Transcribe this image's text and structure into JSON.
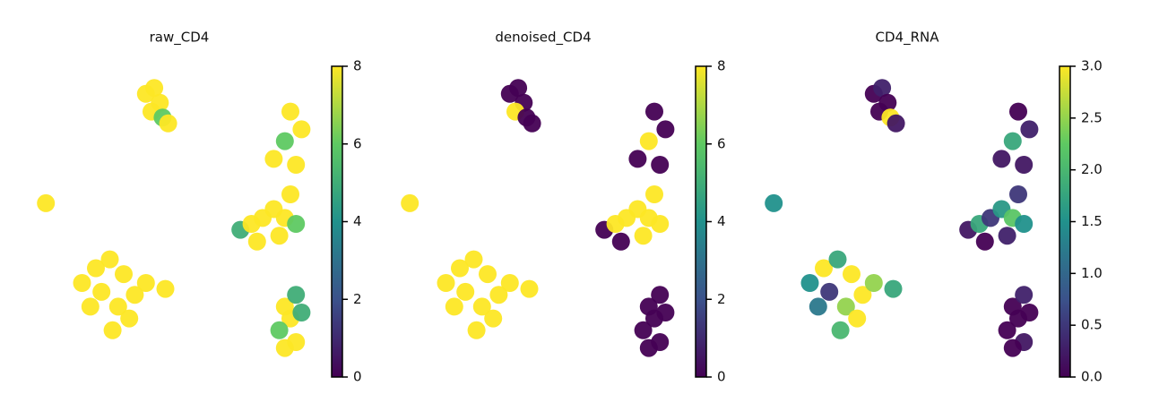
{
  "chart_data": [
    {
      "type": "scatter",
      "title": "raw_CD4",
      "colormap": "viridis",
      "xlim": [
        0,
        100
      ],
      "ylim": [
        0,
        100
      ],
      "x": [
        38,
        41,
        43,
        40,
        44,
        46,
        2,
        15,
        20,
        25,
        30,
        22,
        28,
        34,
        18,
        26,
        32,
        38,
        45,
        72,
        76,
        80,
        84,
        88,
        92,
        78,
        86,
        90,
        92,
        88,
        94,
        90,
        84,
        88,
        92,
        90,
        86,
        92,
        88,
        94
      ],
      "y": [
        94,
        96,
        91,
        88,
        86,
        84,
        57,
        30,
        35,
        38,
        33,
        27,
        22,
        26,
        22,
        14,
        18,
        30,
        28,
        48,
        50,
        52,
        55,
        52,
        50,
        44,
        46,
        60,
        70,
        78,
        82,
        88,
        72,
        22,
        26,
        18,
        14,
        10,
        8,
        20
      ],
      "values": [
        8,
        8,
        8,
        8,
        6,
        8,
        8,
        8,
        8,
        8,
        8,
        8,
        8,
        8,
        8,
        8,
        8,
        8,
        8,
        5,
        8,
        8,
        8,
        8,
        6,
        8,
        8,
        8,
        8,
        6,
        8,
        8,
        8,
        8,
        5,
        8,
        6,
        8,
        8,
        5
      ],
      "clim": [
        0,
        8
      ],
      "cticks": [
        0,
        2,
        4,
        6,
        8
      ]
    },
    {
      "type": "scatter",
      "title": "denoised_CD4",
      "colormap": "viridis",
      "xlim": [
        0,
        100
      ],
      "ylim": [
        0,
        100
      ],
      "x": [
        38,
        41,
        43,
        40,
        44,
        46,
        2,
        15,
        20,
        25,
        30,
        22,
        28,
        34,
        18,
        26,
        32,
        38,
        45,
        72,
        76,
        80,
        84,
        88,
        92,
        78,
        86,
        90,
        92,
        88,
        94,
        90,
        84,
        88,
        92,
        90,
        86,
        92,
        88,
        94
      ],
      "y": [
        94,
        96,
        91,
        88,
        86,
        84,
        57,
        30,
        35,
        38,
        33,
        27,
        22,
        26,
        22,
        14,
        18,
        30,
        28,
        48,
        50,
        52,
        55,
        52,
        50,
        44,
        46,
        60,
        70,
        78,
        82,
        88,
        72,
        22,
        26,
        18,
        14,
        10,
        8,
        20
      ],
      "values": [
        0,
        0,
        0,
        8,
        0,
        0,
        8,
        8,
        8,
        8,
        8,
        8,
        8,
        8,
        8,
        8,
        8,
        8,
        8,
        0,
        8,
        8,
        8,
        8,
        8,
        0,
        8,
        8,
        0,
        8,
        0,
        0,
        0,
        0,
        0,
        0,
        0,
        0,
        0,
        0
      ],
      "clim": [
        0,
        8
      ],
      "cticks": [
        0,
        2,
        4,
        6,
        8
      ]
    },
    {
      "type": "scatter",
      "title": "CD4_RNA",
      "colormap": "viridis",
      "xlim": [
        0,
        100
      ],
      "ylim": [
        0,
        100
      ],
      "x": [
        38,
        41,
        43,
        40,
        44,
        46,
        2,
        15,
        20,
        25,
        30,
        22,
        28,
        34,
        18,
        26,
        32,
        38,
        45,
        72,
        76,
        80,
        84,
        88,
        92,
        78,
        86,
        90,
        92,
        88,
        94,
        90,
        84,
        88,
        92,
        90,
        86,
        92,
        88,
        94
      ],
      "y": [
        94,
        96,
        91,
        88,
        86,
        84,
        57,
        30,
        35,
        38,
        33,
        27,
        22,
        26,
        22,
        14,
        18,
        30,
        28,
        48,
        50,
        52,
        55,
        52,
        50,
        44,
        46,
        60,
        70,
        78,
        82,
        88,
        72,
        22,
        26,
        18,
        14,
        10,
        8,
        20
      ],
      "values": [
        0,
        0.3,
        0,
        0,
        3,
        0.2,
        1.5,
        1.5,
        3,
        1.8,
        3,
        0.5,
        2.5,
        3,
        1.2,
        2,
        3,
        2.5,
        1.8,
        0.2,
        1.8,
        0.5,
        1.6,
        2.2,
        1.5,
        0,
        0.3,
        0.5,
        0.2,
        1.8,
        0.3,
        0,
        0.2,
        0,
        0.3,
        0,
        0,
        0.2,
        0,
        0
      ],
      "clim": [
        0,
        3
      ],
      "cticks": [
        {
          "value": 0,
          "label": "0.0"
        },
        0.5,
        {
          "value": 1,
          "label": "1.0"
        },
        1.5,
        {
          "value": 2,
          "label": "2.0"
        },
        2.5,
        {
          "value": 3,
          "label": "3.0"
        }
      ]
    }
  ]
}
